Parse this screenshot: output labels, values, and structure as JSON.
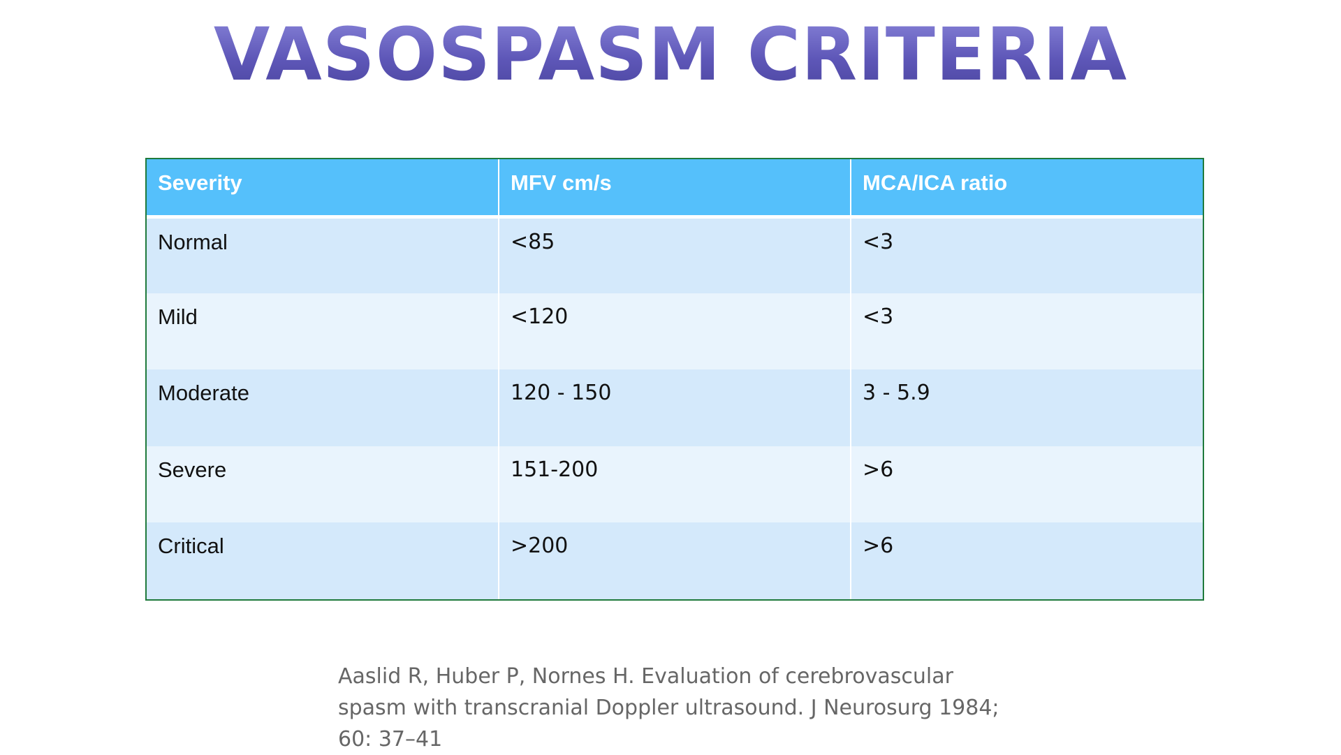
{
  "slide": {
    "title": "VASOSPASM CRITERIA"
  },
  "table": {
    "headers": [
      "Severity",
      "MFV cm/s",
      "MCA/ICA ratio"
    ],
    "rows": [
      [
        "Normal",
        "<85",
        "<3"
      ],
      [
        "Mild",
        "<120",
        "<3"
      ],
      [
        "Moderate",
        "120 - 150",
        "3 - 5.9"
      ],
      [
        "Severe",
        "151-200",
        ">6"
      ],
      [
        "Critical",
        ">200",
        ">6"
      ]
    ]
  },
  "citation": {
    "lines": [
      "Aaslid R, Huber P, Nornes H. Evaluation of cerebrovascular",
      "spasm with transcranial Doppler ultrasound. J Neurosurg 1984;",
      "60: 37–41"
    ]
  },
  "colors": {
    "title": "#6f66c2",
    "header_bg": "#55c0fb",
    "row_odd_bg": "#d4e9fb",
    "row_even_bg": "#e9f4fd",
    "table_border": "#1f7a3c",
    "citation_text": "#666666"
  }
}
